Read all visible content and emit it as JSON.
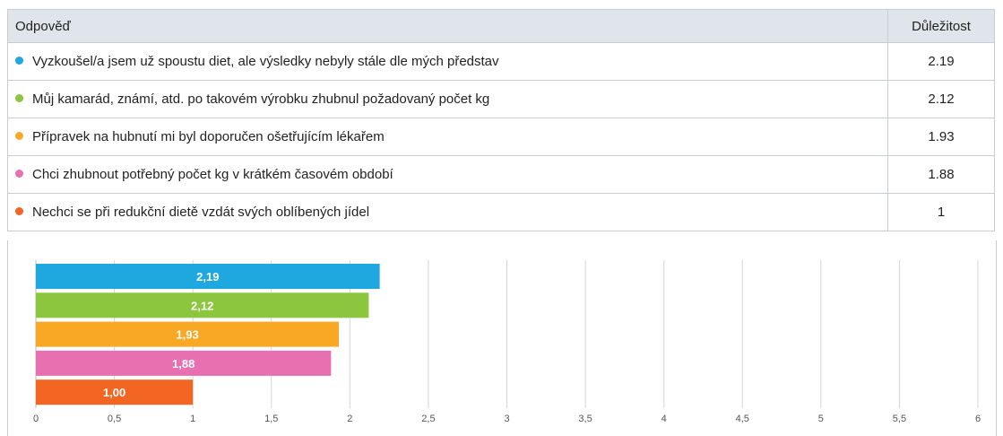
{
  "table": {
    "header": [
      "Odpověď",
      "Důležitost"
    ],
    "rows": [
      {
        "label": "Vyzkoušel/a jsem už spoustu diet, ale výsledky nebyly stále dle mých představ",
        "value": "2.19",
        "color": "#1fa8e0"
      },
      {
        "label": "Můj kamarád, známí, atd. po takovém výrobku zhubnul požadovaný počet kg",
        "value": "2.12",
        "color": "#8cc63f"
      },
      {
        "label": "Přípravek na hubnutí mi byl doporučen ošetřujícím lékařem",
        "value": "1.93",
        "color": "#f9a825"
      },
      {
        "label": "Chci zhubnout potřebný počet kg v krátkém časovém období",
        "value": "1.88",
        "color": "#e86fb0"
      },
      {
        "label": "Nechci se při redukční dietě vzdát svých oblíbených jídel",
        "value": "1",
        "color": "#f26522"
      }
    ]
  },
  "chart_data": {
    "type": "bar",
    "orientation": "horizontal",
    "values": [
      2.19,
      2.12,
      1.93,
      1.88,
      1.0
    ],
    "value_labels": [
      "2,19",
      "2,12",
      "1,93",
      "1,88",
      "1,00"
    ],
    "colors": [
      "#1fa8e0",
      "#8cc63f",
      "#f9a825",
      "#e86fb0",
      "#f26522"
    ],
    "xlim": [
      0,
      6
    ],
    "xticks": [
      0,
      {
        "value": 0.5,
        "label": "0,5"
      },
      1,
      {
        "value": 1.5,
        "label": "1,5"
      },
      2,
      {
        "value": 2.5,
        "label": "2,5"
      },
      3,
      {
        "value": 3.5,
        "label": "3,5"
      },
      4,
      {
        "value": 4.5,
        "label": "4,5"
      },
      5,
      {
        "value": 5.5,
        "label": "5,5"
      },
      6
    ],
    "grid": true
  }
}
